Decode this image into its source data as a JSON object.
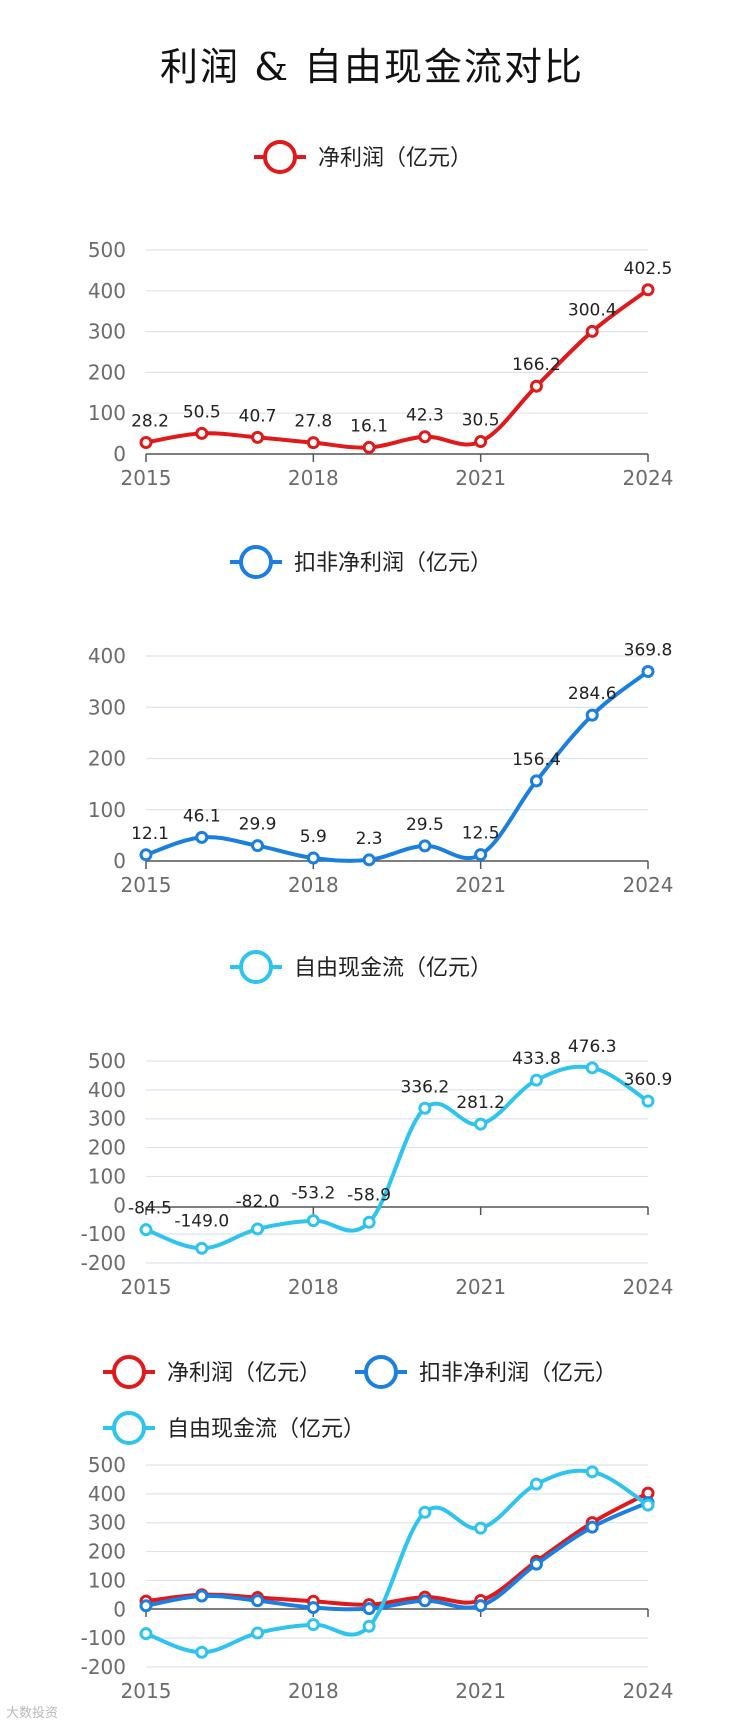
{
  "title": "利润 & 自由现金流对比",
  "watermark": "大数投资",
  "colors": {
    "net_profit": "#e01a1a",
    "deducted_profit": "#1a7fe0",
    "fcf": "#2ec4ee"
  },
  "chart_data": [
    {
      "type": "line",
      "legend": [
        "净利润（亿元）"
      ],
      "x": [
        2015,
        2016,
        2017,
        2018,
        2019,
        2020,
        2021,
        2022,
        2023,
        2024
      ],
      "xticks": [
        "2015",
        "2018",
        "2021",
        "2024"
      ],
      "yticks": [
        0,
        100,
        200,
        300,
        400,
        500
      ],
      "ylim": [
        0,
        500
      ],
      "series": [
        {
          "name": "净利润（亿元）",
          "color": "#e01a1a",
          "values": [
            28.2,
            50.5,
            40.7,
            27.8,
            16.1,
            42.3,
            30.5,
            166.2,
            300.4,
            402.5
          ],
          "labels": [
            "28.2",
            "50.5",
            "40.7",
            "27.8",
            "16.1",
            "42.3",
            "30.5",
            "166.2",
            "300.4",
            "402.5"
          ]
        }
      ]
    },
    {
      "type": "line",
      "legend": [
        "扣非净利润（亿元）"
      ],
      "x": [
        2015,
        2016,
        2017,
        2018,
        2019,
        2020,
        2021,
        2022,
        2023,
        2024
      ],
      "xticks": [
        "2015",
        "2018",
        "2021",
        "2024"
      ],
      "yticks": [
        0,
        100,
        200,
        300,
        400
      ],
      "ylim": [
        0,
        400
      ],
      "series": [
        {
          "name": "扣非净利润（亿元）",
          "color": "#1a7fe0",
          "values": [
            12.1,
            46.1,
            29.9,
            5.9,
            2.3,
            29.5,
            12.5,
            156.4,
            284.6,
            369.8
          ],
          "labels": [
            "12.1",
            "46.1",
            "29.9",
            "5.9",
            "2.3",
            "29.5",
            "12.5",
            "156.4",
            "284.6",
            "369.8"
          ]
        }
      ]
    },
    {
      "type": "line",
      "legend": [
        "自由现金流（亿元）"
      ],
      "x": [
        2015,
        2016,
        2017,
        2018,
        2019,
        2020,
        2021,
        2022,
        2023,
        2024
      ],
      "xticks": [
        "2015",
        "2018",
        "2021",
        "2024"
      ],
      "yticks": [
        -200,
        -100,
        0,
        100,
        200,
        300,
        400,
        500
      ],
      "ylim": [
        -200,
        500
      ],
      "series": [
        {
          "name": "自由现金流（亿元）",
          "color": "#2ec4ee",
          "values": [
            -84.5,
            -149.0,
            -82.0,
            -53.2,
            -58.9,
            336.2,
            281.2,
            433.8,
            476.3,
            360.9
          ],
          "labels": [
            "-84.5",
            "-149.0",
            "-82.0",
            "-53.2",
            "-58.9",
            "336.2",
            "281.2",
            "433.8",
            "476.3",
            "360.9"
          ]
        }
      ]
    },
    {
      "type": "line",
      "legend": [
        "净利润（亿元）",
        "扣非净利润（亿元）",
        "自由现金流（亿元）"
      ],
      "x": [
        2015,
        2016,
        2017,
        2018,
        2019,
        2020,
        2021,
        2022,
        2023,
        2024
      ],
      "xticks": [
        "2015",
        "2018",
        "2021",
        "2024"
      ],
      "yticks": [
        -200,
        -100,
        0,
        100,
        200,
        300,
        400,
        500
      ],
      "ylim": [
        -200,
        500
      ],
      "series": [
        {
          "name": "净利润（亿元）",
          "color": "#e01a1a",
          "values": [
            28.2,
            50.5,
            40.7,
            27.8,
            16.1,
            42.3,
            30.5,
            166.2,
            300.4,
            402.5
          ]
        },
        {
          "name": "扣非净利润（亿元）",
          "color": "#1a7fe0",
          "values": [
            12.1,
            46.1,
            29.9,
            5.9,
            2.3,
            29.5,
            12.5,
            156.4,
            284.6,
            369.8
          ]
        },
        {
          "name": "自由现金流（亿元）",
          "color": "#2ec4ee",
          "values": [
            -84.5,
            -149.0,
            -82.0,
            -53.2,
            -58.9,
            336.2,
            281.2,
            433.8,
            476.3,
            360.9
          ]
        }
      ]
    }
  ]
}
